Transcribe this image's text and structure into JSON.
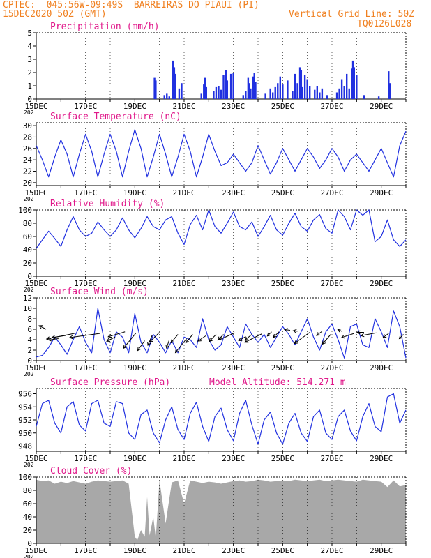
{
  "header": {
    "line1_left": "CPTEC:  045:56W-09:49S  BARREIRAS DO PIAUI (PI)",
    "line2_left": "15DEC2020 50Z (GMT)",
    "line2_right": "Vertical Grid Line: 50Z",
    "line3_right": "TQ0126L028",
    "model_altitude": "Model Altitude: 514.271 m"
  },
  "colors": {
    "header": "#f08020",
    "title": "#e0188a",
    "series": "#2030e0",
    "cloud": "#a8a8a8",
    "grid": "#000000"
  },
  "x_axis": {
    "tick_labels": [
      "15DEC",
      "17DEC",
      "19DEC",
      "21DEC",
      "23DEC",
      "25DEC",
      "27DEC",
      "29DEC"
    ],
    "range_days": [
      15,
      30
    ],
    "year_fragment": "202"
  },
  "chart_data": [
    {
      "type": "bar",
      "title": "Precipitation (mm/h)",
      "ylim": [
        0,
        5
      ],
      "yticks": [
        0,
        1,
        2,
        3,
        4,
        5
      ],
      "bars": [
        {
          "x": 19.8,
          "y": 1.6
        },
        {
          "x": 19.85,
          "y": 1.4
        },
        {
          "x": 20.2,
          "y": 0.3
        },
        {
          "x": 20.3,
          "y": 0.4
        },
        {
          "x": 20.4,
          "y": 0.2
        },
        {
          "x": 20.55,
          "y": 2.9
        },
        {
          "x": 20.6,
          "y": 2.4
        },
        {
          "x": 20.65,
          "y": 1.9
        },
        {
          "x": 20.8,
          "y": 0.8
        },
        {
          "x": 20.9,
          "y": 1.2
        },
        {
          "x": 21.7,
          "y": 0.4
        },
        {
          "x": 21.8,
          "y": 1.1
        },
        {
          "x": 21.85,
          "y": 1.6
        },
        {
          "x": 21.9,
          "y": 0.9
        },
        {
          "x": 22.2,
          "y": 0.6
        },
        {
          "x": 22.3,
          "y": 0.9
        },
        {
          "x": 22.4,
          "y": 1.0
        },
        {
          "x": 22.5,
          "y": 0.7
        },
        {
          "x": 22.6,
          "y": 1.8
        },
        {
          "x": 22.7,
          "y": 2.2
        },
        {
          "x": 22.75,
          "y": 1.4
        },
        {
          "x": 22.9,
          "y": 1.9
        },
        {
          "x": 23.0,
          "y": 2.0
        },
        {
          "x": 23.4,
          "y": 0.3
        },
        {
          "x": 23.5,
          "y": 0.6
        },
        {
          "x": 23.6,
          "y": 1.6
        },
        {
          "x": 23.65,
          "y": 1.2
        },
        {
          "x": 23.7,
          "y": 0.8
        },
        {
          "x": 23.8,
          "y": 1.7
        },
        {
          "x": 23.85,
          "y": 2.0
        },
        {
          "x": 23.9,
          "y": 1.3
        },
        {
          "x": 24.3,
          "y": 0.4
        },
        {
          "x": 24.5,
          "y": 0.8
        },
        {
          "x": 24.6,
          "y": 0.5
        },
        {
          "x": 24.7,
          "y": 0.9
        },
        {
          "x": 24.8,
          "y": 1.2
        },
        {
          "x": 24.9,
          "y": 1.7
        },
        {
          "x": 25.0,
          "y": 1.1
        },
        {
          "x": 25.2,
          "y": 1.4
        },
        {
          "x": 25.4,
          "y": 0.6
        },
        {
          "x": 25.5,
          "y": 1.9
        },
        {
          "x": 25.6,
          "y": 1.2
        },
        {
          "x": 25.7,
          "y": 2.4
        },
        {
          "x": 25.75,
          "y": 2.2
        },
        {
          "x": 25.8,
          "y": 0.9
        },
        {
          "x": 25.9,
          "y": 1.8
        },
        {
          "x": 26.0,
          "y": 1.5
        },
        {
          "x": 26.1,
          "y": 1.0
        },
        {
          "x": 26.3,
          "y": 0.7
        },
        {
          "x": 26.4,
          "y": 1.0
        },
        {
          "x": 26.5,
          "y": 0.5
        },
        {
          "x": 26.6,
          "y": 0.8
        },
        {
          "x": 26.8,
          "y": 0.3
        },
        {
          "x": 27.2,
          "y": 0.5
        },
        {
          "x": 27.3,
          "y": 0.8
        },
        {
          "x": 27.4,
          "y": 1.5
        },
        {
          "x": 27.5,
          "y": 1.0
        },
        {
          "x": 27.6,
          "y": 1.9
        },
        {
          "x": 27.7,
          "y": 0.8
        },
        {
          "x": 27.8,
          "y": 2.3
        },
        {
          "x": 27.85,
          "y": 2.9
        },
        {
          "x": 27.9,
          "y": 2.4
        },
        {
          "x": 28.0,
          "y": 1.8
        },
        {
          "x": 28.3,
          "y": 0.3
        },
        {
          "x": 28.9,
          "y": 0.2
        },
        {
          "x": 29.3,
          "y": 2.1
        },
        {
          "x": 29.35,
          "y": 1.2
        }
      ]
    },
    {
      "type": "line",
      "title": "Surface Temperature (nC)",
      "ylim": [
        19.5,
        30.5
      ],
      "yticks": [
        20,
        22,
        24,
        26,
        28,
        30
      ],
      "x": [
        15.0,
        15.25,
        15.5,
        15.75,
        16.0,
        16.25,
        16.5,
        16.75,
        17.0,
        17.25,
        17.5,
        17.75,
        18.0,
        18.25,
        18.5,
        18.75,
        19.0,
        19.25,
        19.5,
        19.75,
        20.0,
        20.25,
        20.5,
        20.75,
        21.0,
        21.25,
        21.5,
        21.75,
        22.0,
        22.25,
        22.5,
        22.75,
        23.0,
        23.25,
        23.5,
        23.75,
        24.0,
        24.25,
        24.5,
        24.75,
        25.0,
        25.25,
        25.5,
        25.75,
        26.0,
        26.25,
        26.5,
        26.75,
        27.0,
        27.25,
        27.5,
        27.75,
        28.0,
        28.25,
        28.5,
        28.75,
        29.0,
        29.25,
        29.5,
        29.75,
        30.0
      ],
      "y": [
        26.5,
        24.0,
        21.0,
        24.5,
        27.5,
        25.0,
        21.0,
        25.0,
        28.5,
        25.5,
        21.0,
        25.0,
        28.5,
        25.5,
        21.0,
        25.5,
        29.3,
        26.0,
        21.0,
        24.5,
        28.5,
        25.0,
        21.0,
        24.5,
        28.5,
        25.5,
        21.0,
        24.5,
        28.5,
        25.5,
        23.0,
        23.5,
        25.0,
        23.5,
        22.0,
        23.5,
        26.5,
        24.0,
        21.5,
        23.5,
        26.0,
        24.0,
        22.0,
        24.0,
        26.0,
        24.5,
        22.5,
        24.0,
        26.0,
        24.5,
        22.0,
        24.0,
        25.0,
        23.5,
        22.0,
        24.0,
        26.0,
        23.5,
        21.0,
        26.5,
        29.0
      ]
    },
    {
      "type": "line",
      "title": "Relative Humidity (%)",
      "ylim": [
        0,
        100
      ],
      "yticks": [
        0,
        20,
        40,
        60,
        80,
        100
      ],
      "x": [
        15.0,
        15.25,
        15.5,
        15.75,
        16.0,
        16.25,
        16.5,
        16.75,
        17.0,
        17.25,
        17.5,
        17.75,
        18.0,
        18.25,
        18.5,
        18.75,
        19.0,
        19.25,
        19.5,
        19.75,
        20.0,
        20.25,
        20.5,
        20.75,
        21.0,
        21.25,
        21.5,
        21.75,
        22.0,
        22.25,
        22.5,
        22.75,
        23.0,
        23.25,
        23.5,
        23.75,
        24.0,
        24.25,
        24.5,
        24.75,
        25.0,
        25.25,
        25.5,
        25.75,
        26.0,
        26.25,
        26.5,
        26.75,
        27.0,
        27.25,
        27.5,
        27.75,
        28.0,
        28.25,
        28.5,
        28.75,
        29.0,
        29.25,
        29.5,
        29.75,
        30.0
      ],
      "y": [
        42.0,
        55.0,
        68.0,
        57.0,
        45.0,
        70.0,
        90.0,
        70.0,
        60.0,
        65.0,
        82.0,
        70.0,
        60.0,
        70.0,
        88.0,
        70.0,
        58.0,
        72.0,
        90.0,
        75.0,
        70.0,
        85.0,
        90.0,
        65.0,
        48.0,
        78.0,
        92.0,
        70.0,
        100.0,
        75.0,
        65.0,
        80.0,
        97.0,
        75.0,
        70.0,
        82.0,
        60.0,
        75.0,
        92.0,
        70.0,
        62.0,
        80.0,
        95.0,
        75.0,
        68.0,
        85.0,
        93.0,
        72.0,
        65.0,
        100.0,
        90.0,
        70.0,
        100.0,
        92.0,
        100.0,
        52.0,
        60.0,
        85.0,
        55.0,
        45.0,
        55.0
      ]
    },
    {
      "type": "line",
      "title": "Surface Wind (m/s)",
      "ylim": [
        0,
        12
      ],
      "yticks": [
        0,
        2,
        4,
        6,
        8,
        10,
        12
      ],
      "x": [
        15.0,
        15.25,
        15.5,
        15.75,
        16.0,
        16.25,
        16.5,
        16.75,
        17.0,
        17.25,
        17.5,
        17.75,
        18.0,
        18.25,
        18.5,
        18.75,
        19.0,
        19.25,
        19.5,
        19.75,
        20.0,
        20.25,
        20.5,
        20.75,
        21.0,
        21.25,
        21.5,
        21.75,
        22.0,
        22.25,
        22.5,
        22.75,
        23.0,
        23.25,
        23.5,
        23.75,
        24.0,
        24.25,
        24.5,
        24.75,
        25.0,
        25.25,
        25.5,
        25.75,
        26.0,
        26.25,
        26.5,
        26.75,
        27.0,
        27.25,
        27.5,
        27.75,
        28.0,
        28.25,
        28.5,
        28.75,
        29.0,
        29.25,
        29.5,
        29.75,
        30.0
      ],
      "y": [
        0.7,
        1.0,
        2.5,
        4.5,
        3.0,
        1.2,
        4.0,
        6.5,
        3.5,
        1.5,
        10.0,
        4.0,
        1.5,
        5.5,
        4.5,
        1.5,
        9.0,
        3.5,
        1.5,
        5.0,
        3.5,
        1.5,
        3.8,
        1.5,
        4.5,
        4.0,
        2.5,
        8.0,
        4.0,
        2.0,
        3.0,
        6.5,
        4.5,
        2.5,
        7.0,
        5.0,
        3.5,
        5.0,
        2.5,
        4.5,
        6.5,
        5.0,
        3.0,
        5.5,
        8.0,
        4.5,
        2.0,
        5.5,
        7.0,
        4.0,
        0.5,
        6.5,
        7.0,
        3.0,
        2.5,
        8.0,
        5.5,
        2.5,
        9.5,
        6.5,
        0.5
      ],
      "arrows": [
        {
          "x": 15.4,
          "y": 6.0,
          "dx": -10,
          "dy": -5
        },
        {
          "x": 15.9,
          "y": 4.2,
          "dx": -14,
          "dy": 2
        },
        {
          "x": 16.2,
          "y": 4.8,
          "dx": -20,
          "dy": 3
        },
        {
          "x": 16.55,
          "y": 5.2,
          "dx": -40,
          "dy": 8
        },
        {
          "x": 17.6,
          "y": 5.2,
          "dx": -44,
          "dy": 6
        },
        {
          "x": 18.2,
          "y": 4.5,
          "dx": -12,
          "dy": 6
        },
        {
          "x": 18.6,
          "y": 5.5,
          "dx": -24,
          "dy": 7
        },
        {
          "x": 19.05,
          "y": 5.3,
          "dx": -18,
          "dy": 22
        },
        {
          "x": 19.4,
          "y": 3.8,
          "dx": -10,
          "dy": 14
        },
        {
          "x": 19.7,
          "y": 4.8,
          "dx": -6,
          "dy": 14
        },
        {
          "x": 20.0,
          "y": 5.4,
          "dx": -14,
          "dy": 14
        },
        {
          "x": 20.4,
          "y": 4.0,
          "dx": -4,
          "dy": 12
        },
        {
          "x": 20.75,
          "y": 5.0,
          "dx": -10,
          "dy": 12
        },
        {
          "x": 21.1,
          "y": 4.2,
          "dx": -16,
          "dy": 20
        },
        {
          "x": 21.35,
          "y": 5.0,
          "dx": -10,
          "dy": 12
        },
        {
          "x": 21.9,
          "y": 4.8,
          "dx": -12,
          "dy": 8
        },
        {
          "x": 22.3,
          "y": 5.0,
          "dx": -10,
          "dy": 10
        },
        {
          "x": 22.6,
          "y": 5.0,
          "dx": -8,
          "dy": 8
        },
        {
          "x": 23.05,
          "y": 5.3,
          "dx": -22,
          "dy": 10
        },
        {
          "x": 23.5,
          "y": 4.6,
          "dx": -10,
          "dy": 6
        },
        {
          "x": 23.75,
          "y": 5.0,
          "dx": -10,
          "dy": 8
        },
        {
          "x": 24.15,
          "y": 5.1,
          "dx": -24,
          "dy": 12
        },
        {
          "x": 24.55,
          "y": 5.5,
          "dx": -6,
          "dy": 6
        },
        {
          "x": 24.85,
          "y": 5.5,
          "dx": -8,
          "dy": 8
        },
        {
          "x": 25.3,
          "y": 5.8,
          "dx": -8,
          "dy": -1
        },
        {
          "x": 25.6,
          "y": 5.6,
          "dx": -6,
          "dy": -1
        },
        {
          "x": 26.1,
          "y": 5.4,
          "dx": -22,
          "dy": 16
        },
        {
          "x": 26.6,
          "y": 5.6,
          "dx": -8,
          "dy": 6
        },
        {
          "x": 26.95,
          "y": 5.0,
          "dx": -12,
          "dy": 14
        },
        {
          "x": 27.4,
          "y": 5.6,
          "dx": -6,
          "dy": -3
        },
        {
          "x": 27.9,
          "y": 5.2,
          "dx": -18,
          "dy": 6
        },
        {
          "x": 28.3,
          "y": 5.4,
          "dx": -10,
          "dy": 0
        },
        {
          "x": 28.8,
          "y": 5.3,
          "dx": -22,
          "dy": 4
        },
        {
          "x": 29.3,
          "y": 5.2,
          "dx": -8,
          "dy": 6
        },
        {
          "x": 29.9,
          "y": 5.0,
          "dx": -6,
          "dy": 6
        }
      ]
    },
    {
      "type": "line",
      "title": "Surface Pressure (hPa)",
      "ylim": [
        947.2,
        956.8
      ],
      "yticks": [
        948,
        950,
        952,
        954,
        956
      ],
      "x": [
        15.0,
        15.25,
        15.5,
        15.75,
        16.0,
        16.25,
        16.5,
        16.75,
        17.0,
        17.25,
        17.5,
        17.75,
        18.0,
        18.25,
        18.5,
        18.75,
        19.0,
        19.25,
        19.5,
        19.75,
        20.0,
        20.25,
        20.5,
        20.75,
        21.0,
        21.25,
        21.5,
        21.75,
        22.0,
        22.25,
        22.5,
        22.75,
        23.0,
        23.25,
        23.5,
        23.75,
        24.0,
        24.25,
        24.5,
        24.75,
        25.0,
        25.25,
        25.5,
        25.75,
        26.0,
        26.25,
        26.5,
        26.75,
        27.0,
        27.25,
        27.5,
        27.75,
        28.0,
        28.25,
        28.5,
        28.75,
        29.0,
        29.25,
        29.5,
        29.75,
        30.0
      ],
      "y": [
        951.0,
        954.5,
        955.0,
        951.5,
        950.0,
        954.0,
        954.8,
        951.2,
        950.3,
        954.5,
        955.0,
        951.5,
        951.0,
        954.8,
        954.5,
        950.0,
        949.0,
        952.8,
        953.5,
        950.0,
        948.5,
        952.0,
        954.0,
        950.5,
        949.0,
        953.0,
        954.7,
        951.0,
        948.7,
        952.5,
        953.8,
        950.5,
        948.8,
        953.0,
        955.0,
        951.2,
        948.3,
        952.0,
        953.2,
        950.0,
        948.3,
        951.5,
        953.0,
        950.0,
        948.7,
        952.5,
        953.5,
        950.0,
        949.0,
        952.5,
        953.5,
        950.3,
        948.8,
        952.5,
        954.5,
        951.0,
        950.2,
        955.5,
        956.0,
        951.5,
        953.5
      ]
    },
    {
      "type": "area",
      "title": "Cloud Cover (%)",
      "ylim": [
        0,
        100
      ],
      "yticks": [
        0,
        20,
        40,
        60,
        80,
        100
      ],
      "x": [
        15.0,
        15.25,
        15.5,
        15.75,
        16.0,
        16.25,
        16.5,
        16.75,
        17.0,
        17.25,
        17.5,
        17.75,
        18.0,
        18.25,
        18.5,
        18.75,
        19.0,
        19.1,
        19.25,
        19.4,
        19.5,
        19.6,
        19.75,
        19.85,
        20.0,
        20.25,
        20.5,
        20.75,
        21.0,
        21.25,
        21.5,
        21.75,
        22.0,
        22.25,
        22.5,
        22.75,
        23.0,
        23.25,
        23.5,
        23.75,
        24.0,
        24.25,
        24.5,
        24.75,
        25.0,
        25.25,
        25.5,
        25.75,
        26.0,
        26.25,
        26.5,
        26.75,
        27.0,
        27.25,
        27.5,
        27.75,
        28.0,
        28.25,
        28.5,
        28.75,
        29.0,
        29.25,
        29.5,
        29.75,
        30.0
      ],
      "y": [
        96.0,
        94.0,
        95.0,
        90.0,
        93.0,
        91.0,
        94.0,
        92.0,
        90.0,
        93.0,
        95.0,
        94.0,
        93.0,
        94.0,
        95.0,
        90.0,
        10.0,
        5.0,
        20.0,
        10.0,
        70.0,
        12.0,
        40.0,
        8.0,
        95.0,
        30.0,
        92.0,
        95.0,
        60.0,
        95.0,
        93.0,
        91.0,
        93.0,
        92.0,
        90.0,
        92.0,
        94.0,
        95.0,
        93.0,
        94.0,
        96.0,
        95.0,
        93.0,
        94.0,
        95.0,
        94.0,
        96.0,
        95.0,
        94.0,
        95.0,
        96.0,
        94.0,
        95.0,
        96.0,
        95.0,
        94.0,
        93.0,
        96.0,
        95.0,
        94.0,
        93.0,
        85.0,
        95.0,
        86.0,
        88.0
      ]
    }
  ]
}
